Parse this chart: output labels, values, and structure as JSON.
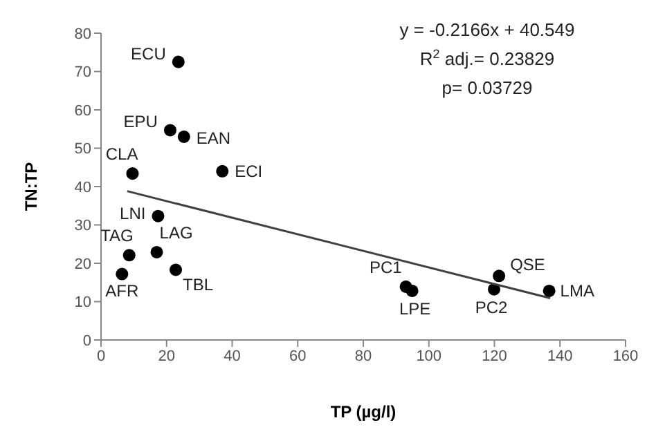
{
  "chart_data": {
    "type": "scatter",
    "xlabel": "TP (µg/l)",
    "ylabel": "TN:TP",
    "xlim": [
      0,
      160
    ],
    "ylim": [
      0,
      80
    ],
    "xticks": [
      0,
      20,
      40,
      60,
      80,
      100,
      120,
      140,
      160
    ],
    "yticks": [
      0,
      10,
      20,
      30,
      40,
      50,
      60,
      70,
      80
    ],
    "grid": false,
    "series": [
      {
        "marker": "circle",
        "color": "#000000",
        "x": [
          23.6,
          21.1,
          25.3,
          9.6,
          37,
          17.4,
          8.6,
          17,
          22.8,
          6.4,
          93,
          94.9,
          121.4,
          119.9,
          136.7
        ],
        "values": [
          72.5,
          54.7,
          53,
          43.4,
          44,
          32.3,
          22.1,
          22.9,
          18.3,
          17.2,
          13.9,
          12.8,
          16.7,
          13.2,
          12.8
        ]
      },
      {
        "type": "line",
        "marker": "none",
        "color": "#404040",
        "x": [
          8,
          137
        ],
        "values": [
          38.8,
          10.9
        ]
      }
    ],
    "annotations": [
      "y = -0.2166x + 40.549",
      "R$^{2}$ adj.= 0.23829",
      "p= 0.03729",
      {
        "text": "ECU",
        "x": 23.6,
        "y": 72.5
      },
      {
        "text": "EPU",
        "x": 21.1,
        "y": 54.7
      },
      {
        "text": "EAN",
        "x": 25.3,
        "y": 53
      },
      {
        "text": "CLA",
        "x": 9.6,
        "y": 43.4
      },
      {
        "text": "ECI",
        "x": 37,
        "y": 44
      },
      {
        "text": "LNI",
        "x": 17.4,
        "y": 32.3
      },
      {
        "text": "TAG",
        "x": 8.6,
        "y": 22.1
      },
      {
        "text": "LAG",
        "x": 17,
        "y": 22.9
      },
      {
        "text": "TBL",
        "x": 22.8,
        "y": 18.3
      },
      {
        "text": "AFR",
        "x": 6.4,
        "y": 17.2
      },
      {
        "text": "PC1",
        "x": 93,
        "y": 13.9
      },
      {
        "text": "LPE",
        "x": 94.9,
        "y": 12.8
      },
      {
        "text": "QSE",
        "x": 121.4,
        "y": 16.7
      },
      {
        "text": "PC2",
        "x": 119.9,
        "y": 13.2
      },
      {
        "text": "LMA",
        "x": 136.7,
        "y": 12.8
      }
    ]
  }
}
